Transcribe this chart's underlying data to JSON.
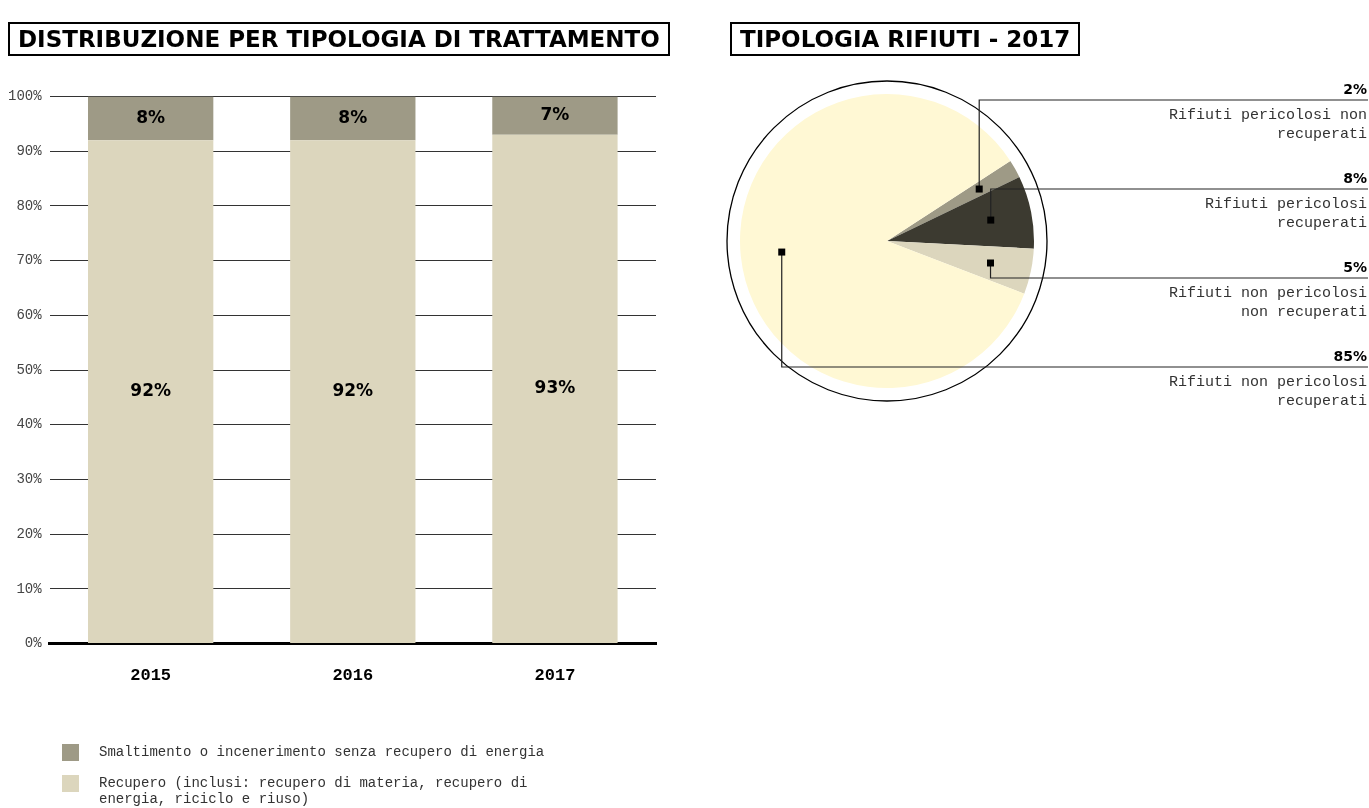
{
  "chart_data": [
    {
      "type": "bar",
      "title": "DISTRIBUZIONE PER TIPOLOGIA DI TRATTAMENTO",
      "categories": [
        "2015",
        "2016",
        "2017"
      ],
      "stacked": true,
      "legend": "bottom",
      "grid": "y",
      "series": [
        {
          "name": "Recupero (inclusi: recupero di materia, recupero di energia, riciclo e riuso)",
          "color": "#dcd6bd",
          "values": [
            92,
            92,
            93
          ],
          "value_labels": [
            "92%",
            "92%",
            "93%"
          ]
        },
        {
          "name": "Smaltimento o incenerimento senza recupero di energia",
          "color": "#9e9a86",
          "values": [
            8,
            8,
            7
          ],
          "value_labels": [
            "8%",
            "8%",
            "7%"
          ]
        }
      ],
      "ylim": [
        0,
        100
      ],
      "yticks": [
        {
          "value": 0,
          "label": "0%"
        },
        {
          "value": 10,
          "label": "10%"
        },
        {
          "value": 20,
          "label": "20%"
        },
        {
          "value": 30,
          "label": "30%"
        },
        {
          "value": 40,
          "label": "40%"
        },
        {
          "value": 50,
          "label": "50%"
        },
        {
          "value": 60,
          "label": "60%"
        },
        {
          "value": 70,
          "label": "70%"
        },
        {
          "value": 80,
          "label": "80%"
        },
        {
          "value": 90,
          "label": "90%"
        },
        {
          "value": 100,
          "label": "100%"
        }
      ]
    },
    {
      "type": "pie",
      "title": "TIPOLOGIA RIFIUTI - 2017",
      "categories": [
        "Rifiuti pericolosi non recuperati",
        "Rifiuti pericolosi recuperati",
        "Rifiuti non pericolosi non recuperati",
        "Rifiuti non pericolosi recuperati"
      ],
      "values": [
        2,
        8,
        5,
        85
      ],
      "value_labels": [
        "2%",
        "8%",
        "5%",
        "85%"
      ],
      "colors": [
        "#9e9a86",
        "#3c3a30",
        "#dcd6bd",
        "#fff8d4"
      ]
    }
  ]
}
